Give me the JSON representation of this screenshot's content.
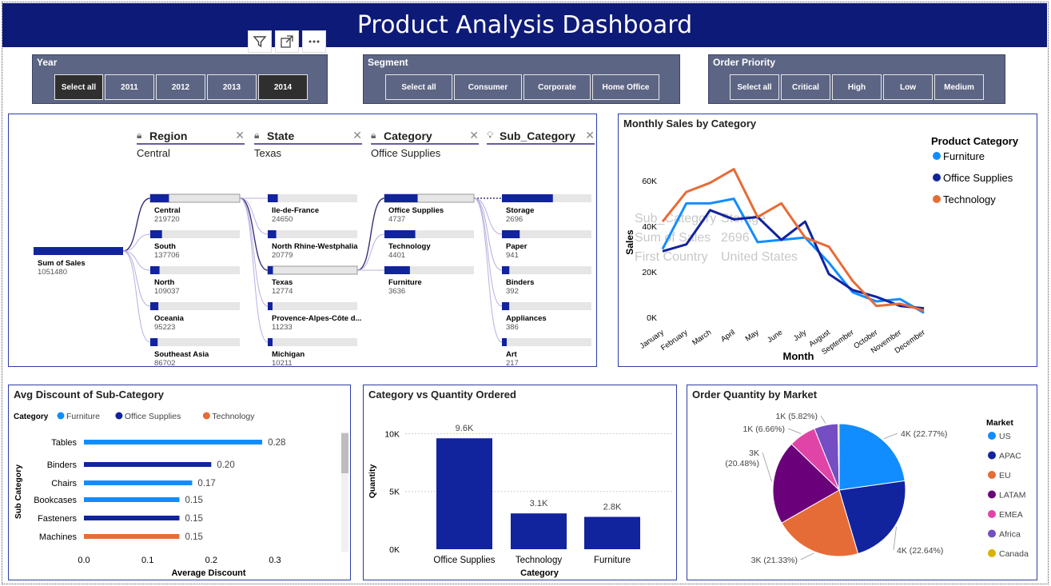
{
  "header": {
    "title": "Product Analysis Dashboard"
  },
  "visual_toolbar": {
    "filter_icon": "filter-icon",
    "focus_icon": "focus-mode-icon",
    "more_icon": "more-options-icon"
  },
  "slicers": {
    "year": {
      "title": "Year",
      "options": [
        "Select all",
        "2011",
        "2012",
        "2013",
        "2014"
      ],
      "selected": [
        "Select all",
        "2014"
      ]
    },
    "segment": {
      "title": "Segment",
      "options": [
        "Select all",
        "Consumer",
        "Corporate",
        "Home Office"
      ]
    },
    "priority": {
      "title": "Order Priority",
      "options": [
        "Select all",
        "Critical",
        "High",
        "Low",
        "Medium"
      ]
    }
  },
  "decomposition": {
    "levels": [
      {
        "name": "Region",
        "value": "Central",
        "icon": "lock-icon"
      },
      {
        "name": "State",
        "value": "Texas",
        "icon": "lock-icon"
      },
      {
        "name": "Category",
        "value": "Office Supplies",
        "icon": "lock-icon"
      },
      {
        "name": "Sub_Category",
        "value": "",
        "icon": "lightbulb-icon"
      }
    ],
    "root": {
      "label": "Sum of Sales",
      "value": "1051480"
    },
    "regions": [
      {
        "label": "Central",
        "value": "219720"
      },
      {
        "label": "South",
        "value": "137706"
      },
      {
        "label": "North",
        "value": "109037"
      },
      {
        "label": "Oceania",
        "value": "95223"
      },
      {
        "label": "Southeast Asia",
        "value": "86702"
      }
    ],
    "states": [
      {
        "label": "Ile-de-France",
        "value": "24650"
      },
      {
        "label": "North Rhine-Westphalia",
        "value": "20779"
      },
      {
        "label": "Texas",
        "value": "12774"
      },
      {
        "label": "Provence-Alpes-Côte d...",
        "value": "11233"
      },
      {
        "label": "Michigan",
        "value": "10211"
      }
    ],
    "categories": [
      {
        "label": "Office Supplies",
        "value": "4737"
      },
      {
        "label": "Technology",
        "value": "4401"
      },
      {
        "label": "Furniture",
        "value": "3636"
      }
    ],
    "subcategories": [
      {
        "label": "Storage",
        "value": "2696"
      },
      {
        "label": "Paper",
        "value": "941"
      },
      {
        "label": "Binders",
        "value": "392"
      },
      {
        "label": "Appliances",
        "value": "386"
      },
      {
        "label": "Art",
        "value": "217"
      }
    ]
  },
  "charts_titles": {
    "monthly": "Monthly Sales by Category",
    "discount": "Avg Discount of Sub-Category",
    "quantity": "Category vs Quantity Ordered",
    "market": "Order Quantity by Market"
  },
  "tooltip": {
    "rows": [
      {
        "k": "Sub_Category",
        "v": "Storage"
      },
      {
        "k": "Sum of Sales",
        "v": "2696"
      },
      {
        "k": "First Country",
        "v": "United States"
      }
    ]
  },
  "colors": {
    "furniture": "#118dff",
    "office": "#12239e",
    "technology": "#e66c37",
    "header": "#0e1a77"
  },
  "chart_data": [
    {
      "type": "line",
      "title": "Monthly Sales by Category",
      "xlabel": "Month",
      "ylabel": "Sales",
      "legend_title": "Product Category",
      "legend_position": "top-right",
      "categories": [
        "January",
        "February",
        "March",
        "April",
        "May",
        "June",
        "July",
        "August",
        "September",
        "October",
        "November",
        "December"
      ],
      "yticks": [
        "0K",
        "20K",
        "40K",
        "60K"
      ],
      "ylim": [
        0,
        68000
      ],
      "series": [
        {
          "name": "Furniture",
          "color": "#118dff",
          "values": [
            30000,
            50000,
            50000,
            52000,
            33000,
            34000,
            35000,
            24000,
            11000,
            7000,
            8000,
            2000
          ]
        },
        {
          "name": "Office Supplies",
          "color": "#12239e",
          "values": [
            29000,
            32000,
            47000,
            43000,
            44000,
            34000,
            42000,
            19000,
            12000,
            9000,
            5000,
            4000
          ]
        },
        {
          "name": "Technology",
          "color": "#e66c37",
          "values": [
            42000,
            55000,
            59000,
            65000,
            44000,
            50000,
            35000,
            31000,
            16000,
            5000,
            6000,
            3000
          ]
        }
      ]
    },
    {
      "type": "bar",
      "orientation": "horizontal",
      "title": "Avg Discount of Sub-Category",
      "xlabel": "Average Discount",
      "ylabel": "Sub Category",
      "legend_title": "Category",
      "legend": [
        {
          "name": "Furniture",
          "color": "#118dff"
        },
        {
          "name": "Office Supplies",
          "color": "#12239e"
        },
        {
          "name": "Technology",
          "color": "#e66c37"
        }
      ],
      "xticks": [
        "0.0",
        "0.1",
        "0.2",
        "0.3"
      ],
      "xlim": [
        0,
        0.3
      ],
      "bars": [
        {
          "label": "Tables",
          "value": 0.28,
          "display": "0.28",
          "color": "#118dff"
        },
        {
          "label": "Binders",
          "value": 0.2,
          "display": "0.20",
          "color": "#12239e"
        },
        {
          "label": "Chairs",
          "value": 0.17,
          "display": "0.17",
          "color": "#118dff"
        },
        {
          "label": "Bookcases",
          "value": 0.15,
          "display": "0.15",
          "color": "#118dff"
        },
        {
          "label": "Fasteners",
          "value": 0.15,
          "display": "0.15",
          "color": "#12239e"
        },
        {
          "label": "Machines",
          "value": 0.15,
          "display": "0.15",
          "color": "#e66c37"
        }
      ]
    },
    {
      "type": "bar",
      "title": "Category vs Quantity Ordered",
      "xlabel": "Category",
      "ylabel": "Quantity",
      "yticks": [
        "0K",
        "5K",
        "10K"
      ],
      "ylim": [
        0,
        11000
      ],
      "categories": [
        "Office Supplies",
        "Technology",
        "Furniture"
      ],
      "values": [
        9600,
        3100,
        2800
      ],
      "labels": [
        "9.6K",
        "3.1K",
        "2.8K"
      ],
      "color": "#12239e"
    },
    {
      "type": "pie",
      "title": "Order Quantity by Market",
      "legend_title": "Market",
      "legend_position": "right",
      "slices": [
        {
          "name": "US",
          "value": 22.77,
          "label": "4K (22.77%)",
          "color": "#118dff"
        },
        {
          "name": "APAC",
          "value": 22.64,
          "label": "4K (22.64%)",
          "color": "#12239e"
        },
        {
          "name": "EU",
          "value": 21.33,
          "label": "3K (21.33%)",
          "color": "#e66c37"
        },
        {
          "name": "LATAM",
          "value": 20.48,
          "label": "3K\n(20.48%)",
          "color": "#6b007b"
        },
        {
          "name": "EMEA",
          "value": 6.66,
          "label": "1K (6.66%)",
          "color": "#e044a7"
        },
        {
          "name": "Africa",
          "value": 5.82,
          "label": "1K (5.82%)",
          "color": "#744ec2"
        },
        {
          "name": "Canada",
          "value": 0.3,
          "label": "",
          "color": "#d9b300"
        }
      ]
    }
  ]
}
